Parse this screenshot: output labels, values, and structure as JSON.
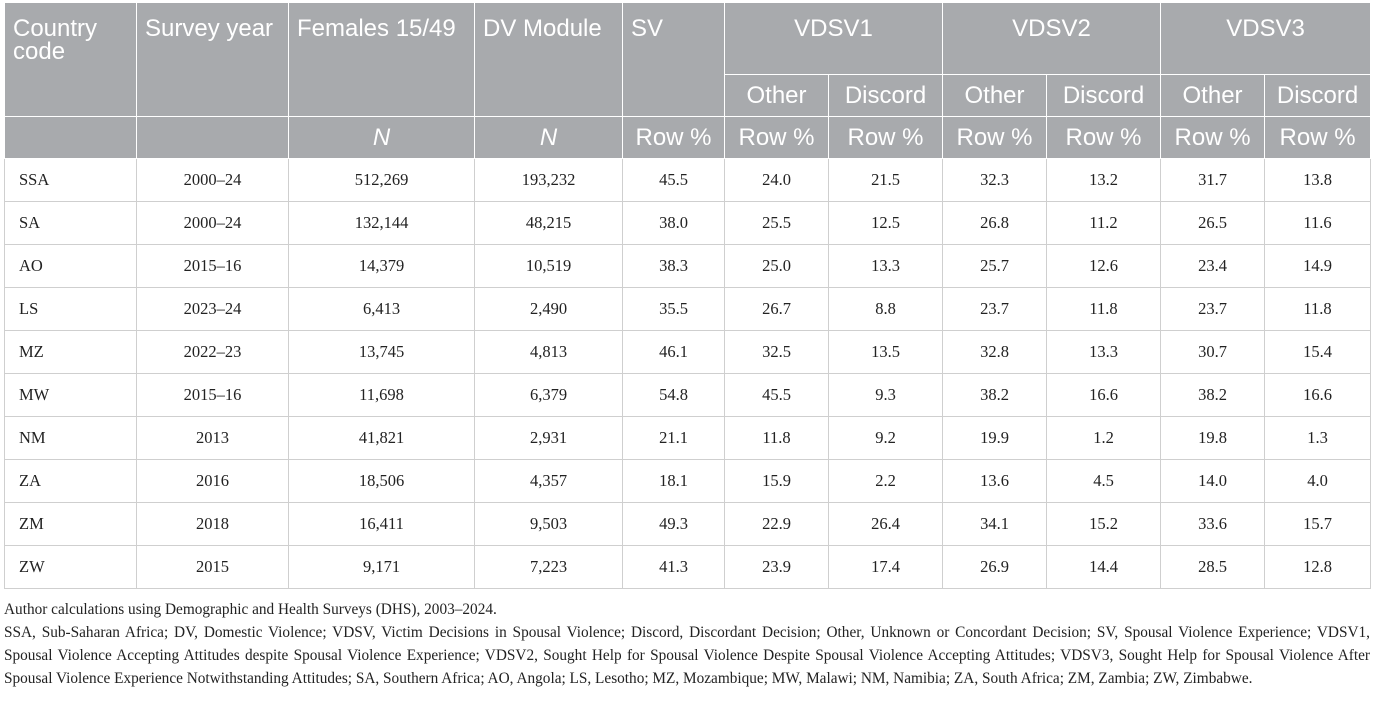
{
  "table": {
    "headers": {
      "country_code": "Country code",
      "survey_year": "Survey year",
      "females": "Females 15/49",
      "dv_module": "DV Module",
      "sv": "SV",
      "vdsv1": "VDSV1",
      "vdsv2": "VDSV2",
      "vdsv3": "VDSV3",
      "other": "Other",
      "discord": "Discord",
      "n": "N",
      "row_pct": "Row %"
    },
    "rows": [
      [
        "SSA",
        "2000–24",
        "512,269",
        "193,232",
        "45.5",
        "24.0",
        "21.5",
        "32.3",
        "13.2",
        "31.7",
        "13.8"
      ],
      [
        "SA",
        "2000–24",
        "132,144",
        "48,215",
        "38.0",
        "25.5",
        "12.5",
        "26.8",
        "11.2",
        "26.5",
        "11.6"
      ],
      [
        "AO",
        "2015–16",
        "14,379",
        "10,519",
        "38.3",
        "25.0",
        "13.3",
        "25.7",
        "12.6",
        "23.4",
        "14.9"
      ],
      [
        "LS",
        "2023–24",
        "6,413",
        "2,490",
        "35.5",
        "26.7",
        "8.8",
        "23.7",
        "11.8",
        "23.7",
        "11.8"
      ],
      [
        "MZ",
        "2022–23",
        "13,745",
        "4,813",
        "46.1",
        "32.5",
        "13.5",
        "32.8",
        "13.3",
        "30.7",
        "15.4"
      ],
      [
        "MW",
        "2015–16",
        "11,698",
        "6,379",
        "54.8",
        "45.5",
        "9.3",
        "38.2",
        "16.6",
        "38.2",
        "16.6"
      ],
      [
        "NM",
        "2013",
        "41,821",
        "2,931",
        "21.1",
        "11.8",
        "9.2",
        "19.9",
        "1.2",
        "19.8",
        "1.3"
      ],
      [
        "ZA",
        "2016",
        "18,506",
        "4,357",
        "18.1",
        "15.9",
        "2.2",
        "13.6",
        "4.5",
        "14.0",
        "4.0"
      ],
      [
        "ZM",
        "2018",
        "16,411",
        "9,503",
        "49.3",
        "22.9",
        "26.4",
        "34.1",
        "15.2",
        "33.6",
        "15.7"
      ],
      [
        "ZW",
        "2015",
        "9,171",
        "7,223",
        "41.3",
        "23.9",
        "17.4",
        "26.9",
        "14.4",
        "28.5",
        "12.8"
      ]
    ]
  },
  "footnotes": {
    "source": "Author calculations using Demographic and Health Surveys (DHS), 2003–2024.",
    "abbreviations": "SSA, Sub-Saharan Africa; DV, Domestic Violence; VDSV, Victim Decisions in Spousal Violence; Discord, Discordant Decision; Other, Unknown or Concordant Decision; SV, Spousal Violence Experience; VDSV1, Spousal Violence Accepting Attitudes despite Spousal Violence Experience; VDSV2, Sought Help for Spousal Violence Despite Spousal Violence Accepting Attitudes; VDSV3, Sought Help for Spousal Violence After Spousal Violence Experience Notwithstanding Attitudes; SA, Southern Africa; AO, Angola; LS, Lesotho; MZ, Mozambique; MW, Malawi; NM, Namibia; ZA, South Africa; ZM, Zambia; ZW, Zimbabwe."
  },
  "colors": {
    "header_bg": "#a8aaad",
    "header_text": "#ffffff",
    "grid": "#cfcfcf"
  }
}
